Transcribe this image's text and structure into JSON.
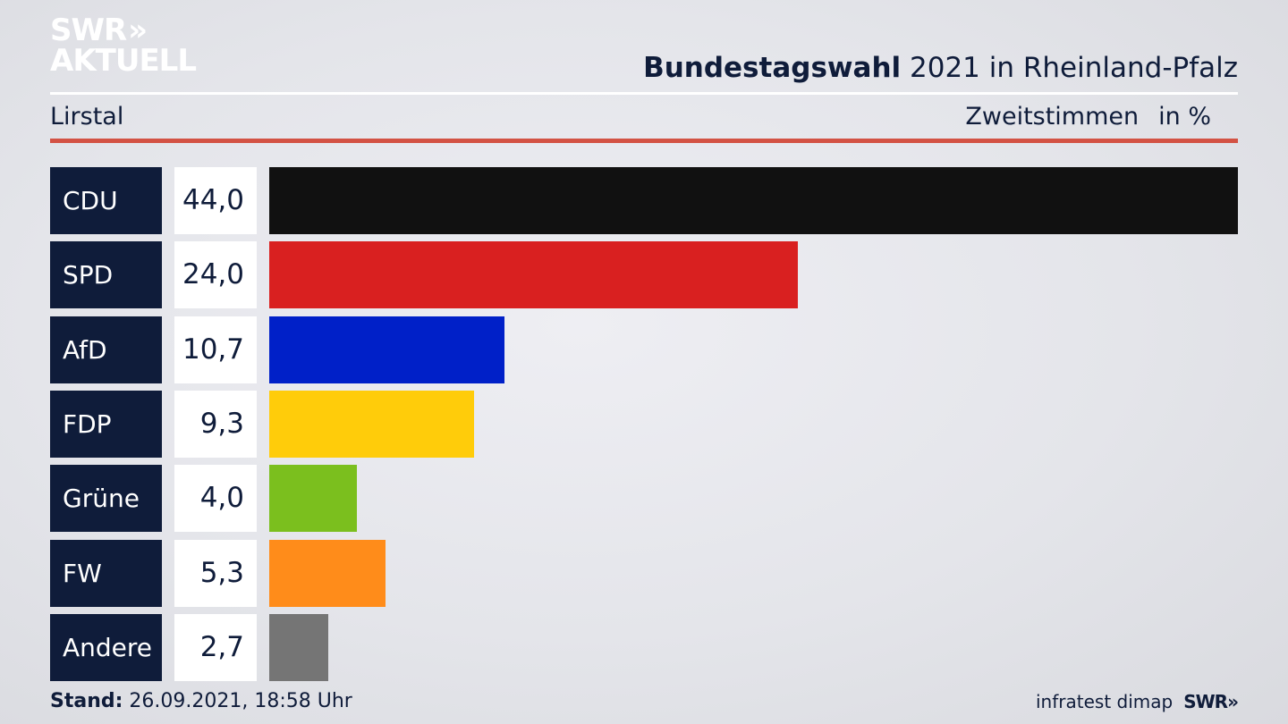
{
  "logo": {
    "line1": "SWR",
    "line1_arrows": "»",
    "line2": "AKTUELL"
  },
  "header": {
    "title_bold": "Bundestagswahl",
    "title_rest": " 2021 in Rheinland-Pfalz",
    "location": "Lirstal",
    "measure": "Zweitstimmen",
    "unit": "in %"
  },
  "footer": {
    "stand_label": "Stand:",
    "stand_value": " 26.09.2021, 18:58 Uhr",
    "source": "infratest dimap",
    "brand": "SWR»"
  },
  "chart_data": {
    "type": "bar",
    "orientation": "horizontal",
    "categories": [
      "CDU",
      "SPD",
      "AfD",
      "FDP",
      "Grüne",
      "FW",
      "Andere"
    ],
    "values": [
      44.0,
      24.0,
      10.7,
      9.3,
      4.0,
      5.3,
      2.7
    ],
    "labels": [
      "44,0",
      "24,0",
      "10,7",
      "9,3",
      "4,0",
      "5,3",
      "2,7"
    ],
    "colors": [
      "#111111",
      "#d92020",
      "#0020c8",
      "#ffcc0a",
      "#7bbf1e",
      "#ff8c1a",
      "#757575"
    ],
    "xlim": [
      0,
      44.0
    ]
  }
}
